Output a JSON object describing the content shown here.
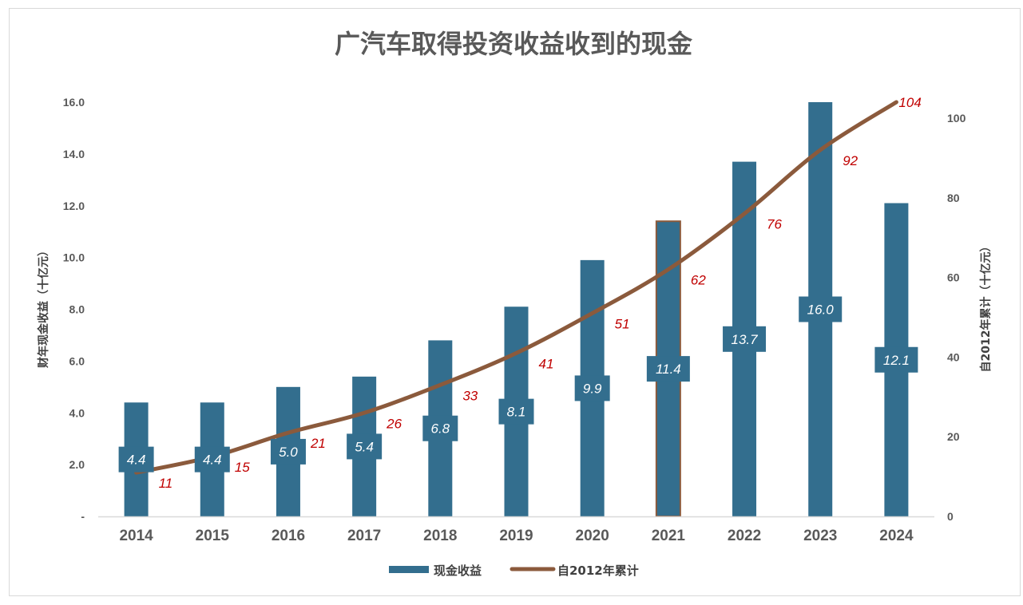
{
  "chart_data": {
    "type": "bar",
    "title": "广汽车取得投资收益收到的现金",
    "categories": [
      "2014",
      "2015",
      "2016",
      "2017",
      "2018",
      "2019",
      "2020",
      "2021",
      "2022",
      "2023",
      "2024"
    ],
    "series": [
      {
        "name": "现金收益",
        "type": "bar",
        "axis": "left",
        "color": "#336e8e",
        "values": [
          4.4,
          4.4,
          5.0,
          5.4,
          6.8,
          8.1,
          9.9,
          11.4,
          13.7,
          16.0,
          12.1
        ],
        "labels": [
          "4.4",
          "4.4",
          "5.0",
          "5.4",
          "6.8",
          "8.1",
          "9.9",
          "11.4",
          "13.7",
          "16.0",
          "12.1"
        ],
        "highlight_outline": {
          "index": 7,
          "color": "#8b5a3c"
        }
      },
      {
        "name": "自2012年累计",
        "type": "line",
        "axis": "right",
        "color": "#8b5a3c",
        "values": [
          11,
          15,
          21,
          26,
          33,
          41,
          51,
          62,
          76,
          92,
          104
        ],
        "labels": [
          "11",
          "15",
          "21",
          "26",
          "33",
          "41",
          "51",
          "62",
          "76",
          "92",
          "104"
        ],
        "label_color": "#c00000"
      }
    ],
    "y_left": {
      "label": "财年现金收益（十亿元）",
      "ylim": [
        0,
        16
      ],
      "ticks": [
        0,
        2,
        4,
        6,
        8,
        10,
        12,
        14,
        16
      ],
      "tick_labels": [
        "-",
        "2.0",
        "4.0",
        "6.0",
        "8.0",
        "10.0",
        "12.0",
        "14.0",
        "16.0"
      ]
    },
    "y_right": {
      "label": "自2012年累计（十亿元）",
      "ylim": [
        0,
        104
      ],
      "ticks": [
        0,
        20,
        40,
        60,
        80,
        100
      ],
      "tick_labels": [
        "0",
        "20",
        "40",
        "60",
        "80",
        "100"
      ]
    },
    "legend": {
      "position": "bottom"
    },
    "grid": false
  }
}
